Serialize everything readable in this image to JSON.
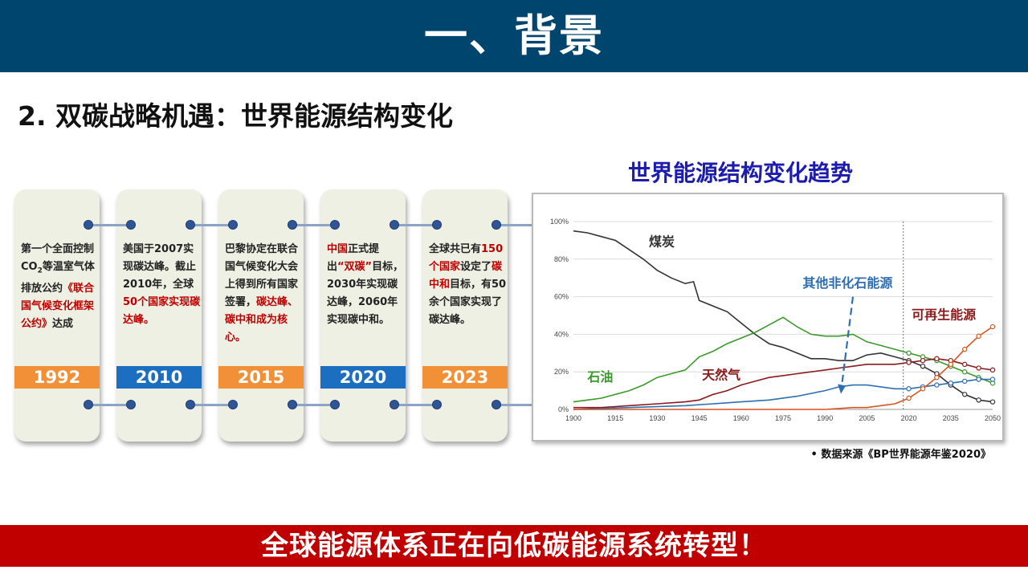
{
  "header": {
    "title": "一、背景"
  },
  "subtitle": "2.  双碳战略机遇：世界能源结构变化",
  "timeline": [
    {
      "year": "1992",
      "color": "#f29038",
      "segments": [
        {
          "t": "第一个全面控制CO"
        },
        {
          "t": "2",
          "sub": true
        },
        {
          "t": "等温室气体排放公约"
        },
        {
          "t": "《联合国气候变化框架公约》",
          "hl": true
        },
        {
          "t": "达成"
        }
      ]
    },
    {
      "year": "2010",
      "color": "#1c6fc0",
      "segments": [
        {
          "t": "美国于2007实现碳达峰。截止2010年，全球"
        },
        {
          "t": "50个国家实现碳达峰。",
          "hl": true
        }
      ]
    },
    {
      "year": "2015",
      "color": "#f29038",
      "segments": [
        {
          "t": "巴黎协定在联合国气候变化大会上得到所有国家签署，"
        },
        {
          "t": "碳达峰、碳中和成为核心。",
          "hl": true
        }
      ]
    },
    {
      "year": "2020",
      "color": "#1c6fc0",
      "segments": [
        {
          "t": "中国",
          "hl": true
        },
        {
          "t": "正式提出"
        },
        {
          "t": "“双碳”",
          "hl": true
        },
        {
          "t": "目标，2030年实现碳达峰，2060年实现碳中和。"
        }
      ]
    },
    {
      "year": "2023",
      "color": "#f29038",
      "segments": [
        {
          "t": "全球共已有"
        },
        {
          "t": "150个国家",
          "hl": true
        },
        {
          "t": "设定了"
        },
        {
          "t": "碳中和",
          "hl": true
        },
        {
          "t": "目标，有50余个国家实现了碳达峰。"
        }
      ]
    }
  ],
  "chart_title": "世界能源结构变化趋势",
  "chart_data": {
    "type": "line",
    "title": "世界能源结构变化趋势",
    "x_ticks": [
      1900,
      1915,
      1930,
      1945,
      1960,
      1975,
      1990,
      2005,
      2020,
      2035,
      2050
    ],
    "y_ticks": [
      "0%",
      "20%",
      "40%",
      "60%",
      "80%",
      "100%"
    ],
    "ylim": [
      0,
      100
    ],
    "projection_start": 2018,
    "series": [
      {
        "name": "煤炭",
        "color": "#333333",
        "points": [
          [
            1900,
            95
          ],
          [
            1905,
            94
          ],
          [
            1910,
            92
          ],
          [
            1915,
            90
          ],
          [
            1920,
            85
          ],
          [
            1925,
            80
          ],
          [
            1930,
            74
          ],
          [
            1935,
            70
          ],
          [
            1940,
            67
          ],
          [
            1943,
            68
          ],
          [
            1945,
            58
          ],
          [
            1950,
            55
          ],
          [
            1955,
            52
          ],
          [
            1960,
            46
          ],
          [
            1965,
            40
          ],
          [
            1970,
            35
          ],
          [
            1975,
            33
          ],
          [
            1980,
            30
          ],
          [
            1985,
            27
          ],
          [
            1990,
            27
          ],
          [
            1995,
            26
          ],
          [
            2000,
            26
          ],
          [
            2005,
            29
          ],
          [
            2010,
            30
          ],
          [
            2015,
            28
          ],
          [
            2020,
            26
          ],
          [
            2025,
            23
          ],
          [
            2030,
            19
          ],
          [
            2035,
            13
          ],
          [
            2040,
            8
          ],
          [
            2045,
            5
          ],
          [
            2050,
            4
          ]
        ]
      },
      {
        "name": "石油",
        "color": "#3a9a2a",
        "points": [
          [
            1900,
            4
          ],
          [
            1905,
            5
          ],
          [
            1910,
            6
          ],
          [
            1915,
            8
          ],
          [
            1920,
            10
          ],
          [
            1925,
            13
          ],
          [
            1930,
            17
          ],
          [
            1935,
            19
          ],
          [
            1940,
            21
          ],
          [
            1945,
            28
          ],
          [
            1950,
            31
          ],
          [
            1955,
            35
          ],
          [
            1960,
            38
          ],
          [
            1965,
            41
          ],
          [
            1970,
            45
          ],
          [
            1975,
            49
          ],
          [
            1980,
            44
          ],
          [
            1985,
            40
          ],
          [
            1990,
            39
          ],
          [
            1995,
            39
          ],
          [
            2000,
            40
          ],
          [
            2005,
            36
          ],
          [
            2010,
            34
          ],
          [
            2015,
            32
          ],
          [
            2020,
            30
          ],
          [
            2025,
            28
          ],
          [
            2030,
            26
          ],
          [
            2035,
            23
          ],
          [
            2040,
            20
          ],
          [
            2045,
            17
          ],
          [
            2050,
            14
          ]
        ]
      },
      {
        "name": "天然气",
        "color": "#8b1a1a",
        "points": [
          [
            1900,
            1
          ],
          [
            1910,
            1
          ],
          [
            1920,
            2
          ],
          [
            1930,
            3
          ],
          [
            1940,
            4
          ],
          [
            1945,
            5
          ],
          [
            1950,
            8
          ],
          [
            1955,
            10
          ],
          [
            1960,
            13
          ],
          [
            1965,
            15
          ],
          [
            1970,
            17
          ],
          [
            1975,
            18
          ],
          [
            1980,
            19
          ],
          [
            1985,
            20
          ],
          [
            1990,
            21
          ],
          [
            1995,
            22
          ],
          [
            2000,
            23
          ],
          [
            2005,
            24
          ],
          [
            2010,
            24
          ],
          [
            2015,
            24
          ],
          [
            2020,
            25
          ],
          [
            2025,
            26
          ],
          [
            2030,
            27
          ],
          [
            2035,
            26
          ],
          [
            2040,
            24
          ],
          [
            2045,
            22
          ],
          [
            2050,
            21
          ]
        ]
      },
      {
        "name": "其他非化石能源",
        "color": "#2e6fb2",
        "points": [
          [
            1900,
            0
          ],
          [
            1920,
            1
          ],
          [
            1940,
            2
          ],
          [
            1950,
            3
          ],
          [
            1960,
            4
          ],
          [
            1970,
            5
          ],
          [
            1980,
            7
          ],
          [
            1990,
            10
          ],
          [
            1995,
            12
          ],
          [
            2000,
            13
          ],
          [
            2005,
            13
          ],
          [
            2010,
            12
          ],
          [
            2015,
            11
          ],
          [
            2020,
            11
          ],
          [
            2025,
            12
          ],
          [
            2030,
            13
          ],
          [
            2035,
            14
          ],
          [
            2040,
            15
          ],
          [
            2045,
            16
          ],
          [
            2050,
            16
          ]
        ]
      },
      {
        "name": "可再生能源",
        "color": "#d9541e",
        "points": [
          [
            1900,
            0
          ],
          [
            1990,
            0
          ],
          [
            2000,
            1
          ],
          [
            2005,
            1
          ],
          [
            2010,
            2
          ],
          [
            2015,
            3
          ],
          [
            2020,
            6
          ],
          [
            2025,
            11
          ],
          [
            2030,
            17
          ],
          [
            2035,
            24
          ],
          [
            2040,
            32
          ],
          [
            2045,
            39
          ],
          [
            2050,
            44
          ]
        ]
      }
    ],
    "annotations": [
      {
        "text": "煤炭",
        "x": 1927,
        "y": 87,
        "color": "#333333"
      },
      {
        "text": "石油",
        "x": 1905,
        "y": 15,
        "color": "#3a9a2a"
      },
      {
        "text": "天然气",
        "x": 1946,
        "y": 16,
        "color": "#8b1a1a"
      },
      {
        "text": "其他非化石能源",
        "x": 1982,
        "y": 65,
        "color": "#2e6fb2"
      },
      {
        "text": "可再生能源",
        "x": 2021,
        "y": 48,
        "color": "#8b1a1a"
      }
    ],
    "arrow": {
      "from": [
        2000,
        60
      ],
      "to": [
        1996,
        16
      ],
      "color": "#2e6fb2"
    }
  },
  "source": "• 数据来源《BP世界能源年鉴2020》",
  "banner": "全球能源体系正在向低碳能源系统转型！"
}
